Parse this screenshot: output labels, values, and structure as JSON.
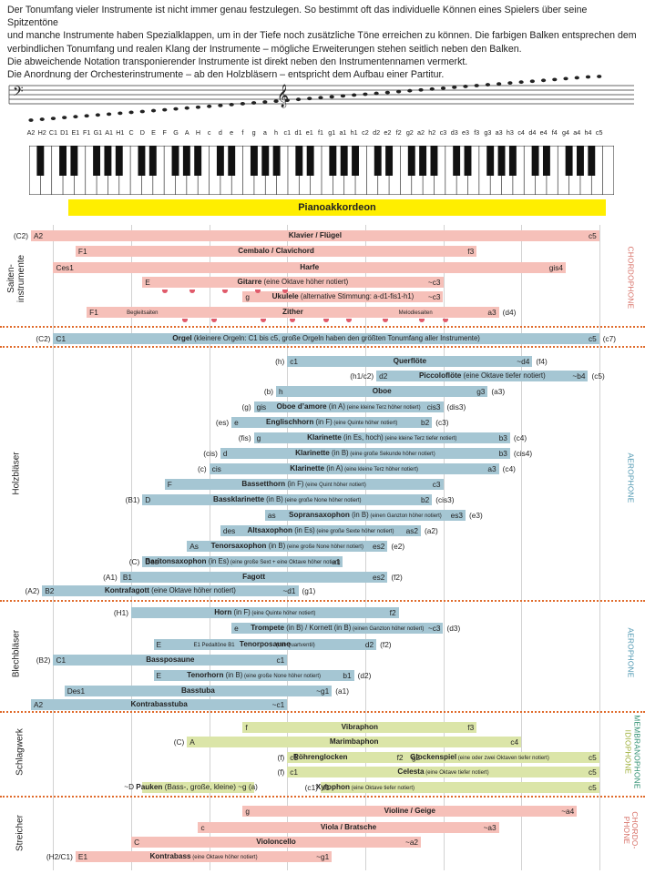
{
  "intro": {
    "text": "Der Tonumfang vieler Instrumente ist nicht immer genau festzulegen. So bestimmt oft das individuelle Können eines Spielers über seine Spitzentöne\nund manche Instrumente haben Spezialklappen, um in der Tiefe noch zusätzliche Töne erreichen zu können. Die farbigen Balken entsprechen dem\nverbindlichen Tonumfang und realen Klang der Instrumente – mögliche Erweiterungen stehen seitlich neben den Balken.\nDie abweichende Notation transponierender Instrumente ist direkt neben den Instrumentennamen vermerkt.\nDie Anordnung der Orchesterinstrumente  – ab den Holzbläsern – entspricht dem Aufbau einer Partitur."
  },
  "notes": [
    "A2",
    "H2",
    "C1",
    "D1",
    "E1",
    "F1",
    "G1",
    "A1",
    "H1",
    "C",
    "D",
    "E",
    "F",
    "G",
    "A",
    "H",
    "c",
    "d",
    "e",
    "f",
    "g",
    "a",
    "h",
    "c1",
    "d1",
    "e1",
    "f1",
    "g1",
    "a1",
    "h1",
    "c2",
    "d2",
    "e2",
    "f2",
    "g2",
    "a2",
    "h2",
    "c3",
    "d3",
    "e3",
    "f3",
    "g3",
    "a3",
    "h3",
    "c4",
    "d4",
    "e4",
    "f4",
    "g4",
    "a4",
    "h4",
    "c5"
  ],
  "pianoakkordeon": "Pianoakkordeon",
  "colors": {
    "chordo": "#f6c0b9",
    "chordo_text": "#d8736a",
    "aero": "#a5c6d3",
    "aero_text": "#4f98b2",
    "idio": "#dbe5a8",
    "idio_text": "#9fb03c",
    "membrano_text": "#2f8f70",
    "keyboard": "#ffee00",
    "separator": "#e06a2a"
  },
  "groups": [
    {
      "label": "Saiten-\ninstrumente"
    },
    {
      "label": "Holzbläser"
    },
    {
      "label": "Blechbläser"
    },
    {
      "label": "Schlagwerk"
    },
    {
      "label": "Streicher"
    }
  ],
  "families": [
    "CHORDOPHONE",
    "AEROPHONE",
    "AEROPHONE",
    "IDIOPHONE",
    "MEMBRANOPHONE",
    "CHORDO-\nPHONE"
  ],
  "rows": [
    {
      "bar_from": "A2",
      "bar_to": "c5",
      "color": "chordo",
      "left": "A2",
      "right": "c5",
      "pre": "(C2)",
      "name": "Klavier / Flügel"
    },
    {
      "bar_from": "E1",
      "bar_to": "f3",
      "color": "chordo",
      "left": "F1",
      "right": "f3",
      "name": "Cembalo / Clavichord"
    },
    {
      "bar_from": "C1",
      "bar_to": "gis4",
      "color": "chordo",
      "left": "Ces1",
      "right": "gis4",
      "name": "Harfe"
    },
    {
      "bar_from": "D",
      "bar_to": "c3",
      "color": "chordo",
      "left": "E",
      "right": "~c3",
      "name": "Gitarre",
      "note": "(eine Oktave höher notiert)"
    },
    {
      "bar_from": "f",
      "bar_to": "c3",
      "color": "chordo",
      "left": "g",
      "right": "~c3",
      "name": "Ukulele",
      "note": "(alternative Stimmung: a-d1-fis1-h1)"
    },
    {
      "bar_from": "F1",
      "bar_to": "a3",
      "color": "chordo",
      "left": "F1",
      "right": "a3",
      "post": "(d4)",
      "name": "Zither",
      "sub1": "Begleitsaiten",
      "sub2": "Melodiesaiten"
    },
    {
      "bar_from": "C1",
      "bar_to": "c5",
      "color": "aero",
      "left": "C1",
      "right": "c5",
      "pre": "(C2)",
      "post": "(c7)",
      "name": "Orgel",
      "note": "(kleinere Orgeln: C1 bis c5, große Orgeln haben den größten Tonumfang aller Instrumente)"
    },
    {
      "bar_from": "c1",
      "bar_to": "d4",
      "color": "aero",
      "left": "c1",
      "right": "~d4",
      "pre": "(h)",
      "post": "(f4)",
      "name": "Querflöte"
    },
    {
      "bar_from": "d2",
      "bar_to": "b4",
      "color": "aero",
      "left": "d2",
      "right": "~b4",
      "pre": "(h1/c2)",
      "post": "(c5)",
      "name": "Piccoloflöte",
      "note": "(eine Oktave tiefer notiert)"
    },
    {
      "bar_from": "h",
      "bar_to": "g3",
      "color": "aero",
      "left": "h",
      "right": "g3",
      "pre": "(b)",
      "post": "(a3)",
      "name": "Oboe"
    },
    {
      "bar_from": "gis",
      "bar_to": "cis3",
      "color": "aero",
      "left": "gis",
      "right": "cis3",
      "pre": "(g)",
      "post": "(dis3)",
      "name": "Oboe d’amore",
      "note": "(in A)",
      "note2": "(eine kleine Terz höher notiert)"
    },
    {
      "bar_from": "e",
      "bar_to": "b2",
      "color": "aero",
      "left": "e",
      "right": "b2",
      "pre": "(es)",
      "post": "(c3)",
      "name": "Englischhorn",
      "note": "(in F)",
      "note2": "(eine Quinte höher notiert)"
    },
    {
      "bar_from": "g",
      "bar_to": "b3",
      "color": "aero",
      "left": "g",
      "right": "b3",
      "pre": "(fis)",
      "post": "(c4)",
      "name": "Klarinette",
      "note": "(in Es, hoch)",
      "note2": "(eine kleine Terz tiefer notiert)"
    },
    {
      "bar_from": "d",
      "bar_to": "b3",
      "color": "aero",
      "left": "d",
      "right": "b3",
      "pre": "(cis)",
      "post": "(cis4)",
      "name": "Klarinette",
      "note": "(in B)",
      "note2": "(eine große Sekunde höher notiert)"
    },
    {
      "bar_from": "c",
      "bar_to": "a3",
      "color": "aero",
      "left": "cis",
      "right": "a3",
      "pre": "(c)",
      "post": "(c4)",
      "name": "Klarinette",
      "note": "(in A)",
      "note2": "(eine kleine Terz höher notiert)"
    },
    {
      "bar_from": "F",
      "bar_to": "c3",
      "color": "aero",
      "left": "F",
      "right": "c3",
      "name": "Bassetthorn",
      "note": "(in F)",
      "note2": "(eine Quint höher notiert)"
    },
    {
      "bar_from": "D",
      "bar_to": "b2",
      "color": "aero",
      "left": "D",
      "right": "b2",
      "pre": "(B1)",
      "post": "(cis3)",
      "name": "Bassklarinette",
      "note": "(in B)",
      "note2": "(eine große None höher notiert)"
    },
    {
      "bar_from": "as",
      "bar_to": "es3",
      "color": "aero",
      "left": "as",
      "right": "es3",
      "post": "(e3)",
      "name": "Sopransaxophon",
      "note": "(in B)",
      "note2": "(einen Ganzton höher notiert)"
    },
    {
      "bar_from": "des",
      "bar_to": "as2",
      "color": "aero",
      "left": "des",
      "right": "as2",
      "post": "(a2)",
      "name": "Altsaxophon",
      "note": "(in Es)",
      "note2": "(eine große Sexte höher notiert)"
    },
    {
      "bar_from": "As",
      "bar_to": "es2",
      "color": "aero",
      "left": "As",
      "right": "es2",
      "post": "(e2)",
      "name": "Tenorsaxophon",
      "note": "(in B)",
      "note2": "(eine große None höher notiert)"
    },
    {
      "bar_from": "Des",
      "bar_to": "a1",
      "color": "aero",
      "left": "Des",
      "right": "a1",
      "pre": "(C)",
      "name": "Baritonsaxophon",
      "note": "(in Es)",
      "note2": "(eine große Sext + eine Oktave höher notiert)"
    },
    {
      "bar_from": "H1",
      "bar_to": "es2",
      "color": "aero",
      "left": "B1",
      "right": "es2",
      "pre": "(A1)",
      "post": "(f2)",
      "name": "Fagott"
    },
    {
      "bar_from": "H2",
      "bar_to": "d1",
      "color": "aero",
      "left": "B2",
      "right": "~d1",
      "pre": "(A2)",
      "post": "(g1)",
      "name": "Kontrafagott",
      "note": "(eine Oktave höher notiert)"
    },
    {
      "bar_from": "C",
      "bar_to": "f2",
      "color": "aero",
      "left": "",
      "right": "f2",
      "pre": "(H1)",
      "name": "Horn",
      "note": "(in F)",
      "note2": "(eine Quinte höher notiert)"
    },
    {
      "bar_from": "e",
      "bar_to": "c3",
      "color": "aero",
      "left": "e",
      "right": "~c3",
      "post": "(d3)",
      "name": "Trompete",
      "note": "(in B) / Kornett (in B)",
      "note2": "(einen Ganzton höher notiert)"
    },
    {
      "bar_from": "E",
      "bar_to": "d2",
      "color": "aero",
      "left": "E",
      "right": "d2",
      "post": "(f2)",
      "name": "Tenorposaune",
      "sub1": "E1  Pedaltöne  B1",
      "sub2": "(mit Quartventil)"
    },
    {
      "bar_from": "C1",
      "bar_to": "c1",
      "color": "aero",
      "left": "C1",
      "right": "c1",
      "pre": "(B2)",
      "name": "Bassposaune"
    },
    {
      "bar_from": "E",
      "bar_to": "b1",
      "color": "aero",
      "left": "E",
      "right": "b1",
      "post": "(d2)",
      "name": "Tenorhorn",
      "note": "(in B)",
      "note2": "(eine große None höher notiert)"
    },
    {
      "bar_from": "D1",
      "bar_to": "g1",
      "color": "aero",
      "left": "Des1",
      "right": "~g1",
      "post": "(a1)",
      "name": "Basstuba"
    },
    {
      "bar_from": "A2",
      "bar_to": "c1",
      "color": "aero",
      "left": "A2",
      "right": "~c1",
      "name": "Kontrabasstuba"
    },
    {
      "bar_from": "f",
      "bar_to": "f3",
      "color": "idio",
      "left": "f",
      "right": "f3",
      "name": "Vibraphon"
    },
    {
      "bar_from": "A",
      "bar_to": "c4",
      "color": "idio",
      "left": "A",
      "right": "c4",
      "pre": "(C)",
      "name": "Marimbaphon"
    },
    {
      "bar_from": "c1",
      "bar_to": "c5",
      "color": "idio",
      "left": "c1",
      "mid1": "f2",
      "mid2": "g2",
      "right": "c5",
      "pre": "(f)",
      "name": "Röhrenglocken",
      "name2": "Glockenspiel",
      "note2": "(eine oder zwei Oktaven tiefer notiert)"
    },
    {
      "bar_from": "c1",
      "bar_to": "c5",
      "color": "idio",
      "left": "c1",
      "right": "c5",
      "pre": "(f)",
      "name": "Celesta",
      "note2": "(eine Oktave tiefer notiert)"
    },
    {
      "bar_from": "f1",
      "bar_to": "c5",
      "color": "idio",
      "left": "f1",
      "right": "c5",
      "pre": "(c1)",
      "name": "Xylophon",
      "note2": "(eine Oktave tiefer notiert)",
      "pauken": "~D",
      "pauken_name": "Pauken",
      "pauken_note": "(Bass-, große, kleine)",
      "pauken_right": "~g",
      "pauken_post": "(a)"
    },
    {
      "bar_from": "f",
      "bar_to": "a4",
      "color": "chordo",
      "left": "g",
      "right": "~a4",
      "name": "Violine / Geige"
    },
    {
      "bar_from": "H",
      "bar_to": "a3",
      "color": "chordo",
      "left": "c",
      "right": "~a3",
      "name": "Viola / Bratsche"
    },
    {
      "bar_from": "C",
      "bar_to": "a2",
      "color": "chordo",
      "left": "C",
      "right": "~a2",
      "name": "Violoncello"
    },
    {
      "bar_from": "E1",
      "bar_to": "g1",
      "color": "chordo",
      "left": "E1",
      "right": "~g1",
      "pre": "(H2/C1)",
      "name": "Kontrabass",
      "note2": "(eine Oktave höher notiert)"
    }
  ]
}
